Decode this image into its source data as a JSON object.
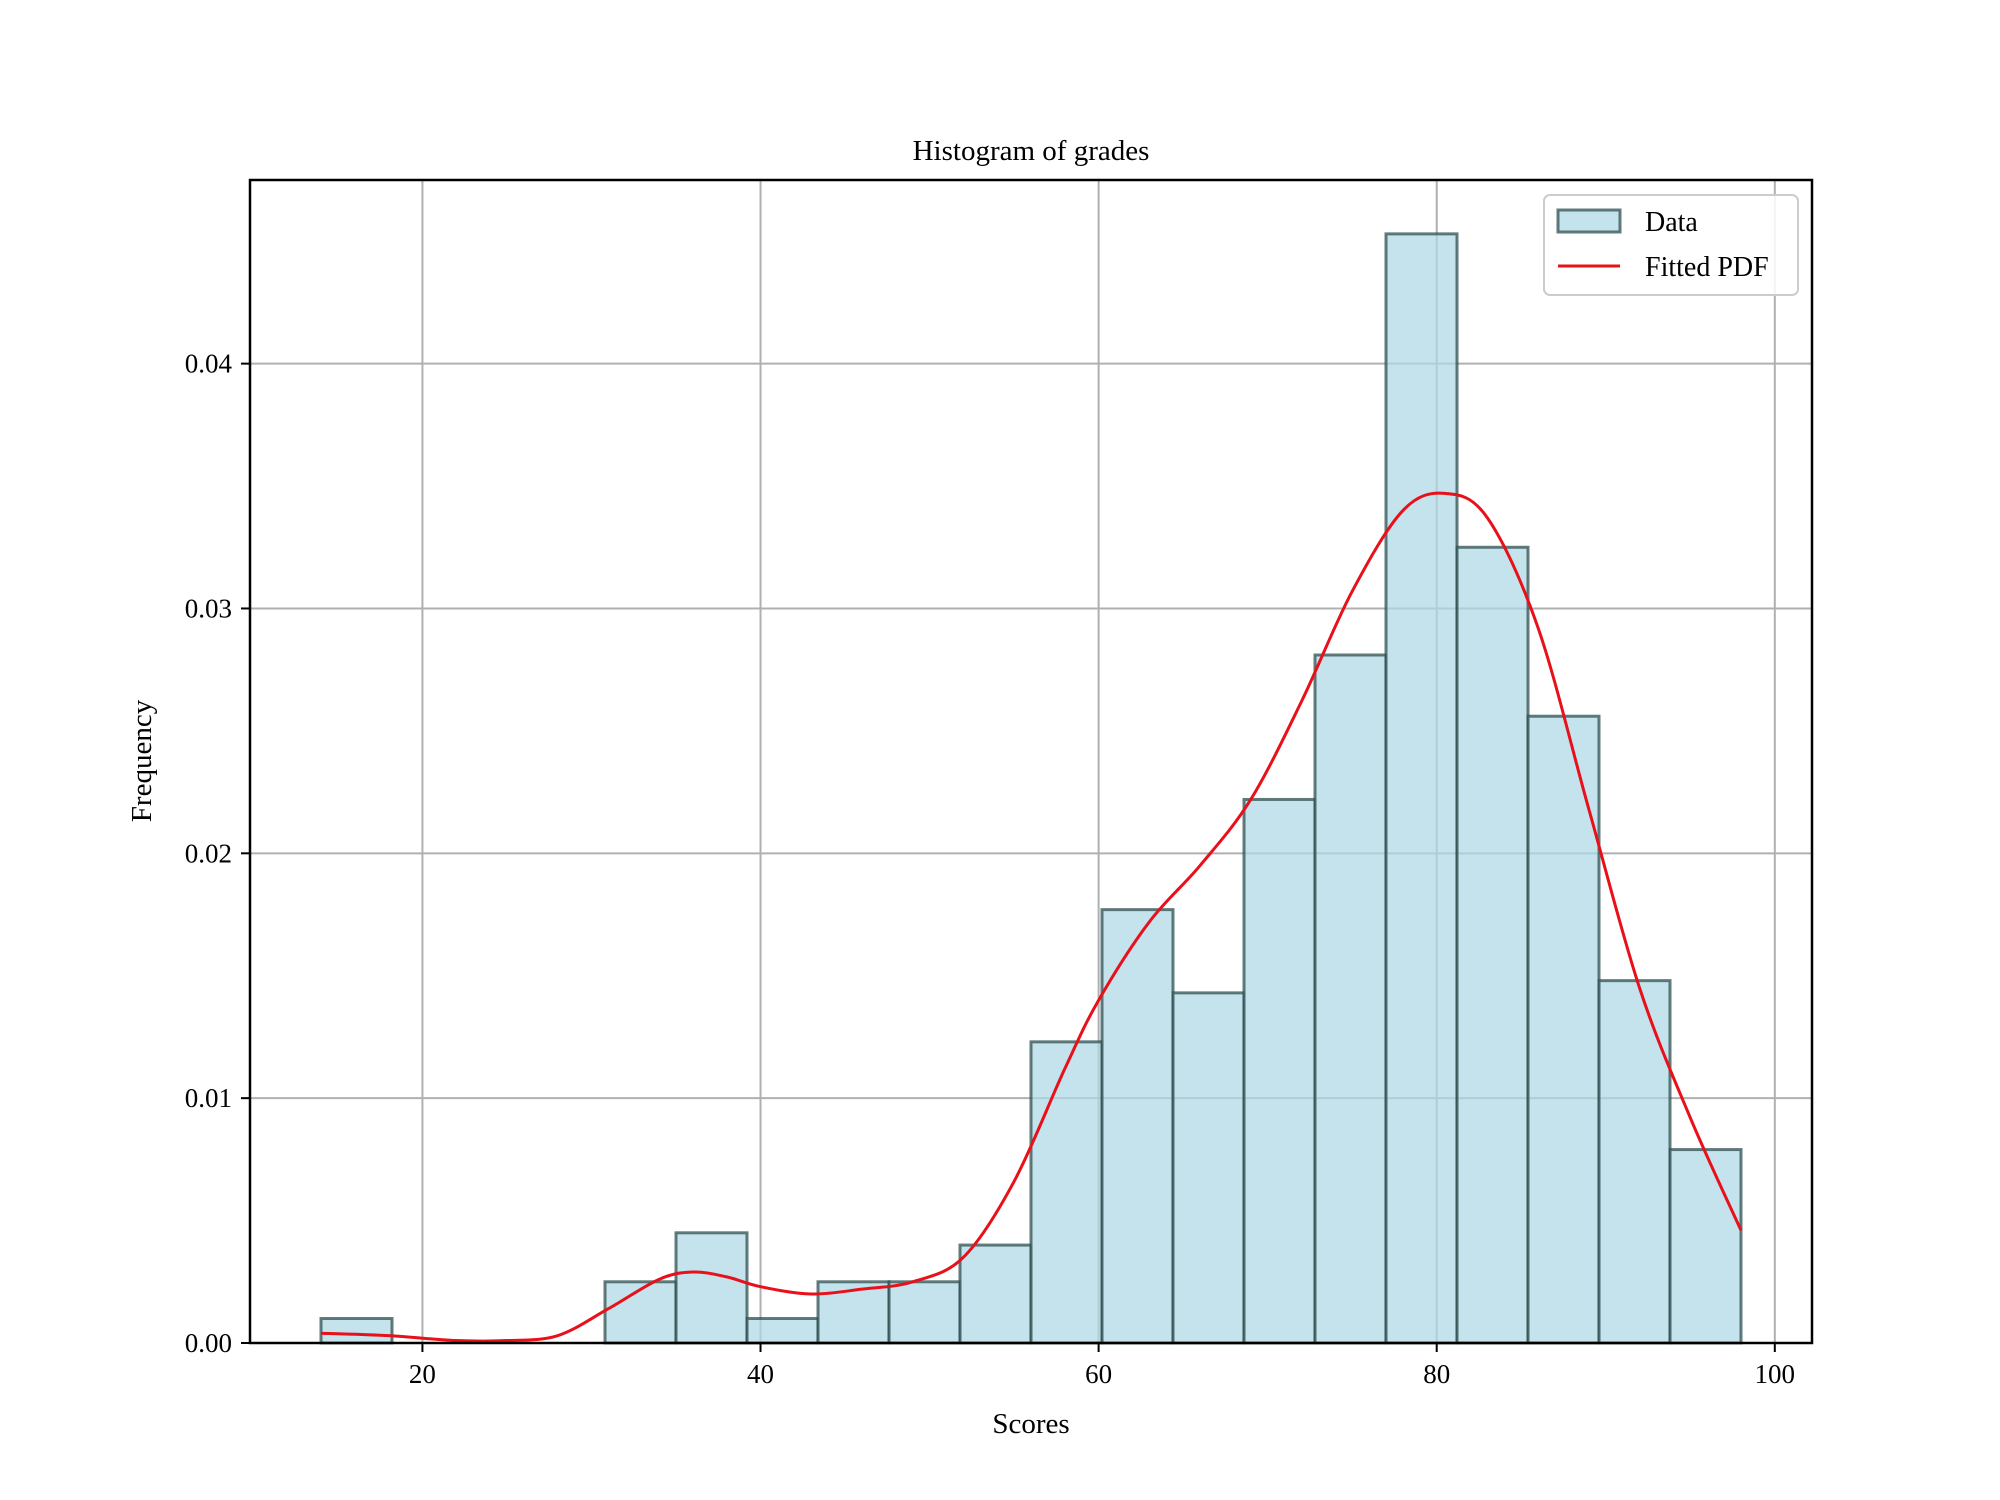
{
  "chart_data": {
    "type": "bar",
    "title": "Histogram of grades",
    "xlabel": "Scores",
    "ylabel": "Frequency",
    "xlim": [
      9.8,
      102.2
    ],
    "ylim": [
      0,
      0.0475
    ],
    "grid": true,
    "legend_position": "top-right",
    "x_ticks": [
      {
        "value": 20,
        "label": "20"
      },
      {
        "value": 40,
        "label": "40"
      },
      {
        "value": 60,
        "label": "60"
      },
      {
        "value": 80,
        "label": "80"
      },
      {
        "value": 100,
        "label": "100"
      }
    ],
    "y_ticks": [
      {
        "value": 0.0,
        "label": "0.00"
      },
      {
        "value": 0.01,
        "label": "0.01"
      },
      {
        "value": 0.02,
        "label": "0.02"
      },
      {
        "value": 0.03,
        "label": "0.03"
      },
      {
        "value": 0.04,
        "label": "0.04"
      }
    ],
    "histogram": {
      "name": "Data",
      "color": "#add8e6",
      "edge_color": "#2f4f4f",
      "bin_edges": [
        14,
        18.2,
        22.4,
        26.6,
        30.8,
        35,
        39.2,
        43.4,
        47.6,
        51.8,
        56,
        60.2,
        64.4,
        68.6,
        72.8,
        77,
        81.2,
        85.4,
        89.6,
        93.8,
        98
      ],
      "densities": [
        0.001,
        0,
        0,
        0,
        0.0025,
        0.0045,
        0.001,
        0.0025,
        0.0025,
        0.004,
        0.0123,
        0.0177,
        0.0143,
        0.0222,
        0.0281,
        0.0453,
        0.0325,
        0.0256,
        0.0148,
        0.0079
      ]
    },
    "fitted_pdf": {
      "name": "Fitted PDF",
      "color": "#e8101a",
      "x": [
        14,
        18,
        22,
        25,
        28,
        31,
        34,
        36,
        38,
        40,
        43,
        46,
        49,
        52,
        55,
        58,
        60,
        63,
        66,
        69,
        72,
        75,
        78,
        80.5,
        83,
        86,
        89,
        92,
        95,
        98
      ],
      "y": [
        0.0004,
        0.0003,
        0.0001,
        0.0001,
        0.0003,
        0.0014,
        0.0026,
        0.0029,
        0.0027,
        0.0023,
        0.002,
        0.0022,
        0.0025,
        0.0035,
        0.0066,
        0.0112,
        0.014,
        0.0172,
        0.0195,
        0.0222,
        0.0262,
        0.0307,
        0.034,
        0.0347,
        0.0337,
        0.0292,
        0.0218,
        0.0145,
        0.0092,
        0.0046
      ]
    }
  }
}
